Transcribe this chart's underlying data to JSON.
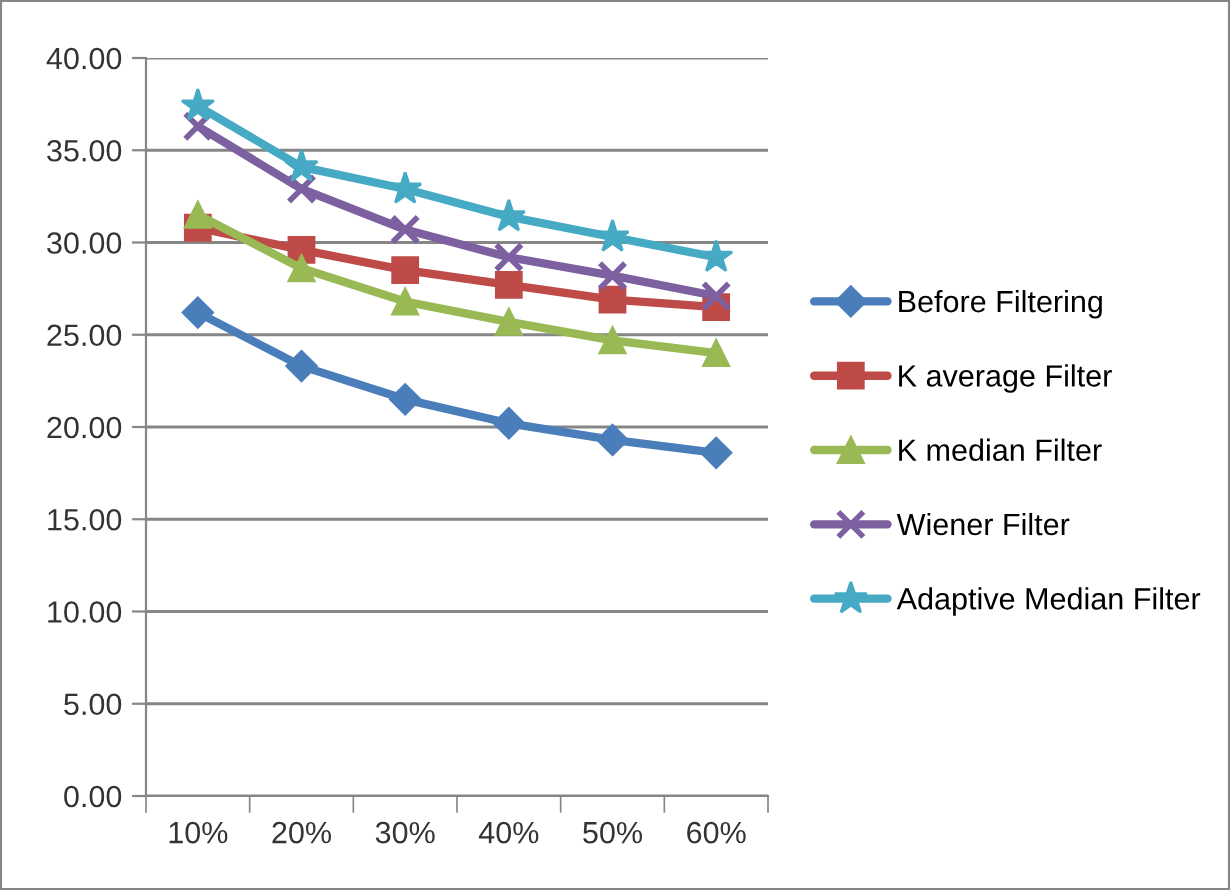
{
  "chart_data": {
    "type": "line",
    "categories": [
      "10%",
      "20%",
      "30%",
      "40%",
      "50%",
      "60%"
    ],
    "series": [
      {
        "name": "Before Filtering",
        "color": "#4a7ebb",
        "marker": "diamond",
        "values": [
          26.2,
          23.3,
          21.5,
          20.2,
          19.3,
          18.6
        ]
      },
      {
        "name": "K average Filter",
        "color": "#be4b48",
        "marker": "square",
        "values": [
          30.8,
          29.6,
          28.5,
          27.7,
          26.9,
          26.5
        ]
      },
      {
        "name": "K median Filter",
        "color": "#98b954",
        "marker": "triangle",
        "values": [
          31.5,
          28.6,
          26.8,
          25.7,
          24.7,
          24.0
        ]
      },
      {
        "name": "Wiener Filter",
        "color": "#7d60a0",
        "marker": "cross",
        "values": [
          36.3,
          32.9,
          30.7,
          29.2,
          28.2,
          27.1
        ]
      },
      {
        "name": "Adaptive Median Filter",
        "color": "#46aac5",
        "marker": "star",
        "values": [
          37.4,
          34.1,
          32.9,
          31.4,
          30.3,
          29.2
        ]
      }
    ],
    "ylim": [
      0,
      40
    ],
    "yticks": [
      {
        "value": 0,
        "label": "0.00"
      },
      {
        "value": 5,
        "label": "5.00"
      },
      {
        "value": 10,
        "label": "10.00"
      },
      {
        "value": 15,
        "label": "15.00"
      },
      {
        "value": 20,
        "label": "20.00"
      },
      {
        "value": 25,
        "label": "25.00"
      },
      {
        "value": 30,
        "label": "30.00"
      },
      {
        "value": 35,
        "label": "35.00"
      },
      {
        "value": 40,
        "label": "40.00"
      }
    ],
    "grid": "y",
    "legend": "right",
    "line_style": "solid"
  }
}
